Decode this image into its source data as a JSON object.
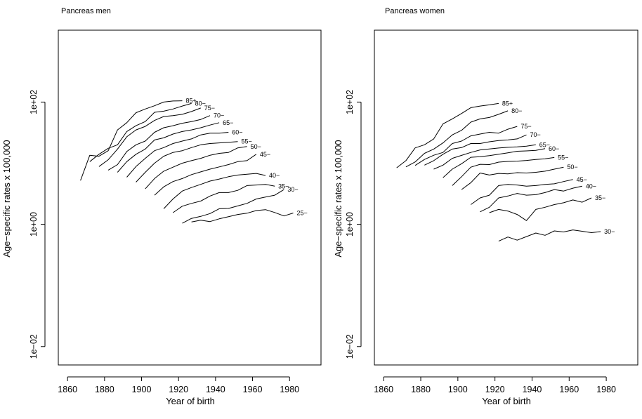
{
  "chart_data": [
    {
      "type": "line",
      "title": "Pancreas men",
      "xlabel": "Year of birth",
      "ylabel": "Age−specific rates x 100,000",
      "y_scale": "log",
      "xlim": [
        1855,
        1997
      ],
      "ylim": [
        0.005,
        1500
      ],
      "x_ticks": [
        "1860",
        "1880",
        "1900",
        "1920",
        "1940",
        "1960",
        "1980"
      ],
      "y_ticks": [
        "1e−02",
        "1e+00",
        "1e+02"
      ],
      "grid": false,
      "series": [
        {
          "name": "85+",
          "x": [
            1867,
            1872,
            1877,
            1882,
            1887,
            1892,
            1897,
            1902,
            1907,
            1912,
            1917,
            1922
          ],
          "y": [
            5.2,
            13.5,
            13.0,
            16.0,
            35,
            46,
            67,
            77,
            87,
            100,
            104,
            105
          ]
        },
        {
          "name": "80−",
          "x": [
            1872,
            1877,
            1882,
            1887,
            1892,
            1897,
            1902,
            1907,
            1912,
            1917,
            1922,
            1927
          ],
          "y": [
            10.6,
            14.0,
            17.5,
            20,
            33,
            41,
            48,
            68,
            71,
            77,
            86,
            95
          ]
        },
        {
          "name": "75−",
          "x": [
            1877,
            1882,
            1887,
            1892,
            1897,
            1902,
            1907,
            1912,
            1917,
            1922,
            1927,
            1932
          ],
          "y": [
            8.8,
            11.4,
            17,
            27,
            35,
            40,
            50,
            58,
            60,
            63,
            70,
            80
          ]
        },
        {
          "name": "70−",
          "x": [
            1882,
            1887,
            1892,
            1897,
            1902,
            1907,
            1912,
            1917,
            1922,
            1927,
            1932,
            1937
          ],
          "y": [
            7.7,
            9.5,
            15.5,
            20,
            23,
            32,
            38,
            41,
            45,
            48,
            52,
            60
          ]
        },
        {
          "name": "65−",
          "x": [
            1887,
            1892,
            1897,
            1902,
            1907,
            1912,
            1917,
            1922,
            1927,
            1932,
            1937,
            1942
          ],
          "y": [
            7.1,
            10.6,
            14,
            17,
            24,
            26,
            30,
            33,
            35,
            38,
            42,
            46
          ]
        },
        {
          "name": "60−",
          "x": [
            1892,
            1897,
            1902,
            1907,
            1912,
            1917,
            1922,
            1927,
            1932,
            1937,
            1942,
            1947
          ],
          "y": [
            5.9,
            8.8,
            12,
            16,
            18,
            21,
            23,
            25,
            29,
            31,
            31,
            32
          ]
        },
        {
          "name": "55−",
          "x": [
            1897,
            1902,
            1907,
            1912,
            1917,
            1922,
            1927,
            1932,
            1937,
            1942,
            1947,
            1952
          ],
          "y": [
            4.9,
            7.1,
            10,
            13,
            15,
            16,
            18,
            20,
            21,
            21.5,
            22,
            22.6
          ]
        },
        {
          "name": "50−",
          "x": [
            1902,
            1907,
            1912,
            1917,
            1922,
            1927,
            1932,
            1937,
            1942,
            1947,
            1952,
            1957
          ],
          "y": [
            3.8,
            5.6,
            7.4,
            8.6,
            10,
            11,
            12,
            13.5,
            14.5,
            15,
            17.8,
            18.7
          ]
        },
        {
          "name": "45−",
          "x": [
            1907,
            1912,
            1917,
            1922,
            1927,
            1932,
            1937,
            1942,
            1947,
            1952,
            1957,
            1962
          ],
          "y": [
            3.0,
            4.1,
            5.0,
            5.6,
            6.5,
            7.2,
            8,
            8.7,
            9.5,
            10.6,
            11,
            14
          ]
        },
        {
          "name": "40−",
          "x": [
            1912,
            1917,
            1922,
            1927,
            1932,
            1937,
            1942,
            1947,
            1952,
            1957,
            1962,
            1967
          ],
          "y": [
            1.8,
            2.6,
            3.5,
            4.0,
            4.5,
            5.1,
            5.5,
            6.0,
            6.4,
            6.6,
            6.8,
            6.3
          ]
        },
        {
          "name": "35−",
          "x": [
            1917,
            1922,
            1927,
            1932,
            1937,
            1942,
            1947,
            1952,
            1957,
            1962,
            1967,
            1972
          ],
          "y": [
            1.55,
            1.98,
            2.2,
            2.4,
            2.9,
            3.3,
            3.3,
            3.6,
            4.3,
            4.4,
            4.5,
            4.2
          ]
        },
        {
          "name": "30−",
          "x": [
            1922,
            1927,
            1932,
            1937,
            1942,
            1947,
            1952,
            1957,
            1962,
            1967,
            1972,
            1977
          ],
          "y": [
            1.04,
            1.25,
            1.35,
            1.5,
            1.8,
            1.82,
            2.0,
            2.2,
            2.6,
            2.8,
            3.0,
            3.7
          ]
        },
        {
          "name": "25−",
          "x": [
            1927,
            1932,
            1937,
            1942,
            1947,
            1952,
            1957,
            1962,
            1967,
            1972,
            1977,
            1982
          ],
          "y": [
            1.09,
            1.17,
            1.11,
            1.23,
            1.33,
            1.45,
            1.52,
            1.68,
            1.74,
            1.56,
            1.37,
            1.53
          ]
        }
      ]
    },
    {
      "type": "line",
      "title": "Pancreas women",
      "xlabel": "Year of birth",
      "ylabel": "Age−specific rates x 100,000",
      "y_scale": "log",
      "xlim": [
        1855,
        1997
      ],
      "ylim": [
        0.005,
        1500
      ],
      "x_ticks": [
        "1860",
        "1880",
        "1900",
        "1920",
        "1940",
        "1960",
        "1980"
      ],
      "y_ticks": [
        "1e−02",
        "1e+00",
        "1e+02"
      ],
      "grid": false,
      "series": [
        {
          "name": "85+",
          "x": [
            1867,
            1872,
            1877,
            1882,
            1887,
            1892,
            1897,
            1902,
            1907,
            1912,
            1917,
            1922
          ],
          "y": [
            8.4,
            11,
            17.8,
            20,
            25,
            44,
            53,
            65,
            81,
            86,
            90,
            95
          ]
        },
        {
          "name": "80−",
          "x": [
            1872,
            1877,
            1882,
            1887,
            1892,
            1897,
            1902,
            1907,
            1912,
            1917,
            1922,
            1927
          ],
          "y": [
            8.7,
            10.5,
            14.5,
            17,
            21.5,
            29,
            34.5,
            47,
            53,
            56,
            63,
            72
          ]
        },
        {
          "name": "75−",
          "x": [
            1877,
            1882,
            1887,
            1892,
            1897,
            1902,
            1907,
            1912,
            1917,
            1922,
            1927,
            1932
          ],
          "y": [
            9.2,
            11.5,
            13.5,
            15,
            21,
            23,
            28,
            30,
            32,
            31,
            36,
            40
          ]
        },
        {
          "name": "70−",
          "x": [
            1882,
            1887,
            1892,
            1897,
            1902,
            1907,
            1912,
            1917,
            1922,
            1927,
            1932,
            1937
          ],
          "y": [
            9.3,
            11,
            14,
            17,
            18,
            21,
            21,
            22.4,
            23.5,
            24,
            25,
            29
          ]
        },
        {
          "name": "65−",
          "x": [
            1887,
            1892,
            1897,
            1902,
            1907,
            1912,
            1917,
            1922,
            1927,
            1932,
            1937,
            1942
          ],
          "y": [
            8.0,
            9.3,
            12,
            13.4,
            15,
            16.5,
            17.1,
            17.7,
            18.2,
            18.5,
            19,
            20
          ]
        },
        {
          "name": "60−",
          "x": [
            1892,
            1897,
            1902,
            1907,
            1912,
            1917,
            1922,
            1927,
            1932,
            1937,
            1942,
            1947
          ],
          "y": [
            5.8,
            8.0,
            9.8,
            12.5,
            12.8,
            13.3,
            14.0,
            14.8,
            15.7,
            15.9,
            16.2,
            17.3
          ]
        },
        {
          "name": "55−",
          "x": [
            1897,
            1902,
            1907,
            1912,
            1917,
            1922,
            1927,
            1932,
            1937,
            1942,
            1947,
            1952
          ],
          "y": [
            4.3,
            6.0,
            8.6,
            9.6,
            9.5,
            10.4,
            10.7,
            10.8,
            11.1,
            11.5,
            11.8,
            12.4
          ]
        },
        {
          "name": "50−",
          "x": [
            1902,
            1907,
            1912,
            1917,
            1922,
            1927,
            1932,
            1937,
            1942,
            1947,
            1952,
            1957
          ],
          "y": [
            3.7,
            4.8,
            6.9,
            6.4,
            6.8,
            6.7,
            7.0,
            6.9,
            7.1,
            7.4,
            8.0,
            8.6
          ]
        },
        {
          "name": "45−",
          "x": [
            1907,
            1912,
            1917,
            1922,
            1927,
            1932,
            1937,
            1942,
            1947,
            1952,
            1957,
            1962
          ],
          "y": [
            2.1,
            2.7,
            3.0,
            4.3,
            4.5,
            4.4,
            4.2,
            4.3,
            4.5,
            4.6,
            5.0,
            5.4
          ]
        },
        {
          "name": "40−",
          "x": [
            1912,
            1917,
            1922,
            1927,
            1932,
            1937,
            1942,
            1947,
            1952,
            1957,
            1962,
            1967
          ],
          "y": [
            1.6,
            1.9,
            2.7,
            2.9,
            3.2,
            3.0,
            3.05,
            3.3,
            3.7,
            3.5,
            3.9,
            4.2
          ]
        },
        {
          "name": "35−",
          "x": [
            1917,
            1922,
            1927,
            1932,
            1937,
            1942,
            1947,
            1952,
            1957,
            1962,
            1967,
            1972
          ],
          "y": [
            1.55,
            1.75,
            1.65,
            1.45,
            1.15,
            1.75,
            1.9,
            2.1,
            2.25,
            2.5,
            2.3,
            2.7
          ]
        },
        {
          "name": "30−",
          "x": [
            1922,
            1927,
            1932,
            1937,
            1942,
            1947,
            1952,
            1957,
            1962,
            1967,
            1972,
            1977
          ],
          "y": [
            0.53,
            0.62,
            0.55,
            0.63,
            0.72,
            0.66,
            0.78,
            0.75,
            0.81,
            0.77,
            0.73,
            0.76
          ]
        }
      ]
    }
  ]
}
